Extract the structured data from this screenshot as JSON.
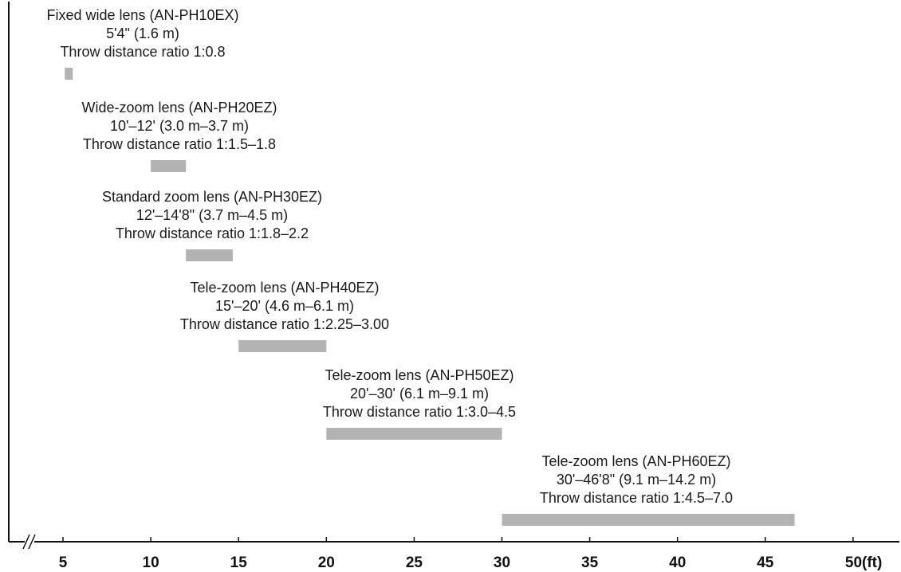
{
  "chart_data": {
    "type": "bar",
    "orientation": "horizontal-range",
    "x_unit": "ft",
    "xlim": [
      2,
      51
    ],
    "x_axis_break": true,
    "grid": false,
    "bar_color": "#b3b3b3",
    "x_ticks": [
      {
        "value": 5,
        "label": "5"
      },
      {
        "value": 10,
        "label": "10"
      },
      {
        "value": 15,
        "label": "15"
      },
      {
        "value": 20,
        "label": "20"
      },
      {
        "value": 25,
        "label": "25"
      },
      {
        "value": 30,
        "label": "30"
      },
      {
        "value": 35,
        "label": "35"
      },
      {
        "value": 40,
        "label": "40"
      },
      {
        "value": 45,
        "label": "45"
      },
      {
        "value": 50,
        "label": "50(ft)"
      }
    ],
    "lenses": [
      {
        "name": "Fixed wide lens (AN-PH10EX)",
        "range_label": "5'4\" (1.6 m)",
        "ratio_label": "Throw distance ratio 1:0.8",
        "x_start": 5.33,
        "x_end": 5.33
      },
      {
        "name": "Wide-zoom lens (AN-PH20EZ)",
        "range_label": "10'–12' (3.0 m–3.7 m)",
        "ratio_label": "Throw distance ratio 1:1.5–1.8",
        "x_start": 10,
        "x_end": 12
      },
      {
        "name": "Standard zoom lens (AN-PH30EZ)",
        "range_label": "12'–14'8\" (3.7 m–4.5 m)",
        "ratio_label": "Throw distance ratio 1:1.8–2.2",
        "x_start": 12,
        "x_end": 14.67
      },
      {
        "name": "Tele-zoom lens (AN-PH40EZ)",
        "range_label": "15'–20' (4.6 m–6.1 m)",
        "ratio_label": "Throw distance ratio 1:2.25–3.00",
        "x_start": 15,
        "x_end": 20
      },
      {
        "name": "Tele-zoom lens (AN-PH50EZ)",
        "range_label": "20'–30' (6.1 m–9.1 m)",
        "ratio_label": "Throw distance ratio 1:3.0–4.5",
        "x_start": 20,
        "x_end": 30
      },
      {
        "name": "Tele-zoom lens (AN-PH60EZ)",
        "range_label": "30'–46'8\" (9.1 m–14.2 m)",
        "ratio_label": "Throw distance ratio 1:4.5–7.0",
        "x_start": 30,
        "x_end": 46.67
      }
    ]
  }
}
